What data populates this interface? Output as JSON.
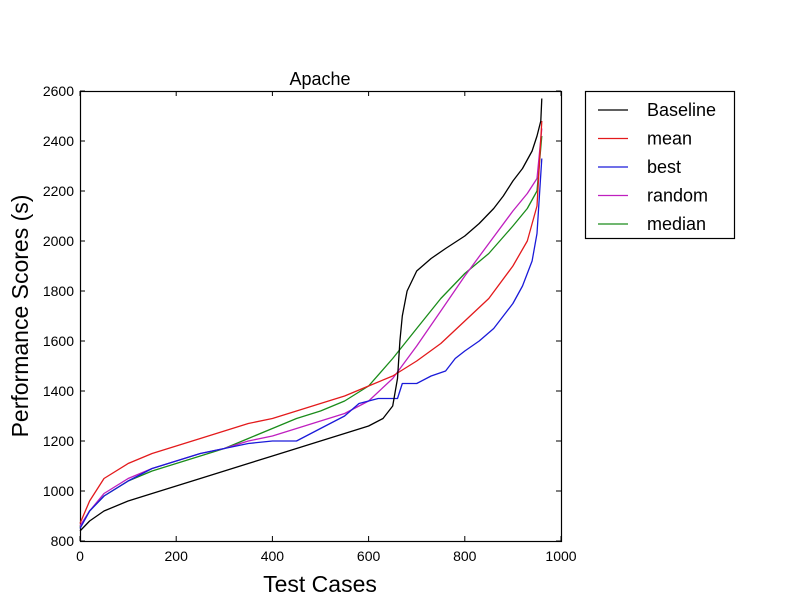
{
  "chart_data": {
    "type": "line",
    "title": "Apache",
    "xlabel": "Test Cases",
    "ylabel": "Performance Scores (s)",
    "xlim": [
      0,
      1000
    ],
    "ylim": [
      800,
      2600
    ],
    "xticks": [
      0,
      200,
      400,
      600,
      800,
      1000
    ],
    "yticks": [
      800,
      1000,
      1200,
      1400,
      1600,
      1800,
      2000,
      2200,
      2400,
      2600
    ],
    "grid": false,
    "legend_position": "outside-right-top",
    "series": [
      {
        "name": "Baseline",
        "color": "#000000",
        "x": [
          0,
          20,
          50,
          100,
          150,
          200,
          250,
          300,
          350,
          400,
          450,
          500,
          550,
          600,
          630,
          650,
          660,
          665,
          670,
          680,
          700,
          730,
          760,
          800,
          830,
          860,
          880,
          900,
          920,
          940,
          950,
          958,
          960
        ],
        "y": [
          840,
          880,
          920,
          960,
          990,
          1020,
          1050,
          1080,
          1110,
          1140,
          1170,
          1200,
          1230,
          1260,
          1290,
          1340,
          1450,
          1600,
          1700,
          1800,
          1880,
          1930,
          1970,
          2020,
          2070,
          2130,
          2180,
          2240,
          2290,
          2360,
          2420,
          2480,
          2570
        ]
      },
      {
        "name": "mean",
        "color": "#e31a1c",
        "x": [
          0,
          20,
          50,
          100,
          150,
          200,
          250,
          300,
          350,
          400,
          450,
          500,
          550,
          600,
          650,
          700,
          750,
          800,
          850,
          900,
          930,
          950,
          960
        ],
        "y": [
          870,
          960,
          1050,
          1110,
          1150,
          1180,
          1210,
          1240,
          1270,
          1290,
          1320,
          1350,
          1380,
          1420,
          1460,
          1520,
          1590,
          1680,
          1770,
          1900,
          2000,
          2140,
          2480
        ]
      },
      {
        "name": "best",
        "color": "#1a1ad9",
        "x": [
          0,
          20,
          50,
          100,
          150,
          200,
          250,
          300,
          350,
          400,
          450,
          500,
          550,
          580,
          620,
          640,
          660,
          670,
          700,
          730,
          760,
          780,
          800,
          830,
          860,
          880,
          900,
          920,
          940,
          950,
          960
        ],
        "y": [
          850,
          920,
          980,
          1040,
          1090,
          1120,
          1150,
          1170,
          1190,
          1200,
          1200,
          1250,
          1300,
          1350,
          1370,
          1370,
          1370,
          1430,
          1430,
          1460,
          1480,
          1530,
          1560,
          1600,
          1650,
          1700,
          1750,
          1820,
          1920,
          2030,
          2330
        ]
      },
      {
        "name": "random",
        "color": "#bf1fbf",
        "x": [
          0,
          20,
          50,
          100,
          150,
          200,
          250,
          300,
          350,
          400,
          450,
          500,
          550,
          600,
          650,
          700,
          750,
          800,
          850,
          900,
          930,
          950,
          960
        ],
        "y": [
          860,
          920,
          990,
          1050,
          1090,
          1120,
          1150,
          1170,
          1200,
          1220,
          1250,
          1280,
          1310,
          1360,
          1450,
          1580,
          1720,
          1860,
          1990,
          2120,
          2190,
          2250,
          2450
        ]
      },
      {
        "name": "median",
        "color": "#1a8c1a",
        "x": [
          0,
          20,
          50,
          100,
          150,
          200,
          250,
          300,
          350,
          400,
          450,
          500,
          550,
          600,
          650,
          700,
          750,
          800,
          850,
          900,
          930,
          950,
          960
        ],
        "y": [
          855,
          920,
          980,
          1040,
          1080,
          1110,
          1140,
          1170,
          1210,
          1250,
          1290,
          1320,
          1360,
          1420,
          1530,
          1650,
          1770,
          1870,
          1950,
          2060,
          2130,
          2200,
          2420
        ]
      }
    ]
  }
}
